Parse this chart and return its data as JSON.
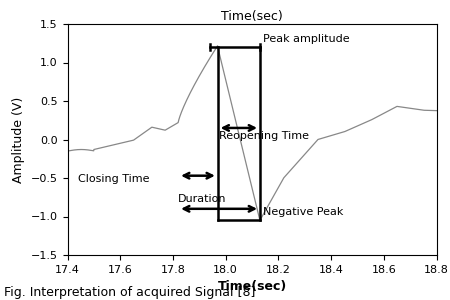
{
  "title": "Time(sec)",
  "xlabel": "Time(sec)",
  "ylabel": "Amplitude (V)",
  "xlim": [
    17.4,
    18.8
  ],
  "ylim": [
    -1.5,
    1.5
  ],
  "xticks": [
    17.4,
    17.6,
    17.8,
    18.0,
    18.2,
    18.4,
    18.6,
    18.8
  ],
  "yticks": [
    -1.5,
    -1.0,
    -0.5,
    0.0,
    0.5,
    1.0,
    1.5
  ],
  "signal_color": "#888888",
  "annotation_color": "#000000",
  "fig_caption": "Fig. Interpretation of acquired Signal [8]",
  "peak_amplitude_label": "Peak amplitude",
  "reopening_time_label": "Reopening Time",
  "closing_time_label": "Closing Time",
  "negative_peak_label": "Negative Peak",
  "duration_label": "Duration",
  "peak_x": 17.97,
  "peak_y": 1.2,
  "neg_peak_x": 18.13,
  "neg_peak_y": -1.05,
  "close_start_x": 17.82,
  "close_end_x": 17.97,
  "reopen_start_x": 17.97,
  "reopen_end_x": 18.13,
  "duration_start_x": 17.82,
  "duration_end_x": 18.13
}
